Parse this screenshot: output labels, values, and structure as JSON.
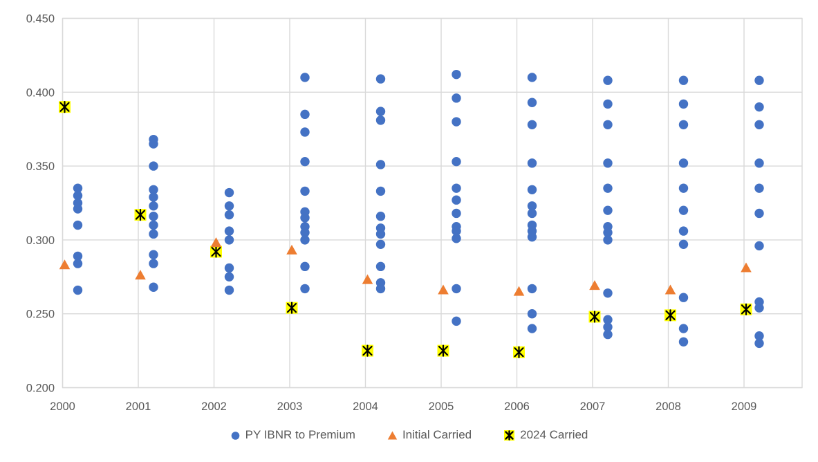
{
  "chart_data": {
    "type": "scatter",
    "title": "",
    "x_categories": [
      "2000",
      "2001",
      "2002",
      "2003",
      "2004",
      "2005",
      "2006",
      "2007",
      "2008",
      "2009"
    ],
    "y_axis": {
      "min": 0.2,
      "max": 0.45,
      "tick_interval": 0.05,
      "tick_labels": [
        "0.450",
        "0.400",
        "0.350",
        "0.300",
        "0.250",
        "0.200"
      ]
    },
    "grid": true,
    "legend_position": "bottom-center",
    "series": [
      {
        "name": "PY IBNR to Premium",
        "marker": "circle",
        "color": "#4472C4",
        "values_by_year": {
          "2000": [
            0.335,
            0.33,
            0.325,
            0.321,
            0.31,
            0.289,
            0.284,
            0.266
          ],
          "2001": [
            0.368,
            0.365,
            0.35,
            0.334,
            0.329,
            0.323,
            0.316,
            0.31,
            0.304,
            0.29,
            0.284,
            0.268
          ],
          "2002": [
            0.332,
            0.323,
            0.317,
            0.306,
            0.3,
            0.281,
            0.275,
            0.266
          ],
          "2003": [
            0.41,
            0.385,
            0.373,
            0.353,
            0.333,
            0.319,
            0.315,
            0.309,
            0.305,
            0.3,
            0.282,
            0.267
          ],
          "2004": [
            0.409,
            0.387,
            0.381,
            0.351,
            0.333,
            0.316,
            0.308,
            0.304,
            0.297,
            0.282,
            0.271,
            0.267
          ],
          "2005": [
            0.412,
            0.396,
            0.38,
            0.353,
            0.335,
            0.327,
            0.318,
            0.309,
            0.306,
            0.301,
            0.267,
            0.245
          ],
          "2006": [
            0.41,
            0.393,
            0.378,
            0.352,
            0.334,
            0.323,
            0.318,
            0.31,
            0.306,
            0.302,
            0.267,
            0.25,
            0.24
          ],
          "2007": [
            0.408,
            0.392,
            0.378,
            0.352,
            0.335,
            0.32,
            0.309,
            0.305,
            0.3,
            0.264,
            0.246,
            0.241,
            0.236
          ],
          "2008": [
            0.408,
            0.392,
            0.378,
            0.352,
            0.335,
            0.32,
            0.306,
            0.297,
            0.261,
            0.24,
            0.231
          ],
          "2009": [
            0.408,
            0.39,
            0.378,
            0.352,
            0.335,
            0.318,
            0.296,
            0.258,
            0.254,
            0.235,
            0.23
          ]
        }
      },
      {
        "name": "Initial Carried",
        "marker": "triangle",
        "color": "#ED7D31",
        "values_by_year": {
          "2000": 0.283,
          "2001": 0.276,
          "2002": 0.298,
          "2003": 0.293,
          "2004": 0.273,
          "2005": 0.266,
          "2006": 0.265,
          "2007": 0.269,
          "2008": 0.266,
          "2009": 0.281
        }
      },
      {
        "name": "2024 Carried",
        "marker": "x-square",
        "color": "#FFFF00",
        "stroke": "#000000",
        "values_by_year": {
          "2000": 0.39,
          "2001": 0.317,
          "2002": 0.292,
          "2003": 0.254,
          "2004": 0.225,
          "2005": 0.225,
          "2006": 0.224,
          "2007": 0.248,
          "2008": 0.249,
          "2009": 0.253
        }
      }
    ]
  },
  "colors": {
    "gridline": "#D9D9D9",
    "axis_text": "#595959",
    "legend_text": "#595959",
    "background": "#FFFFFF"
  }
}
